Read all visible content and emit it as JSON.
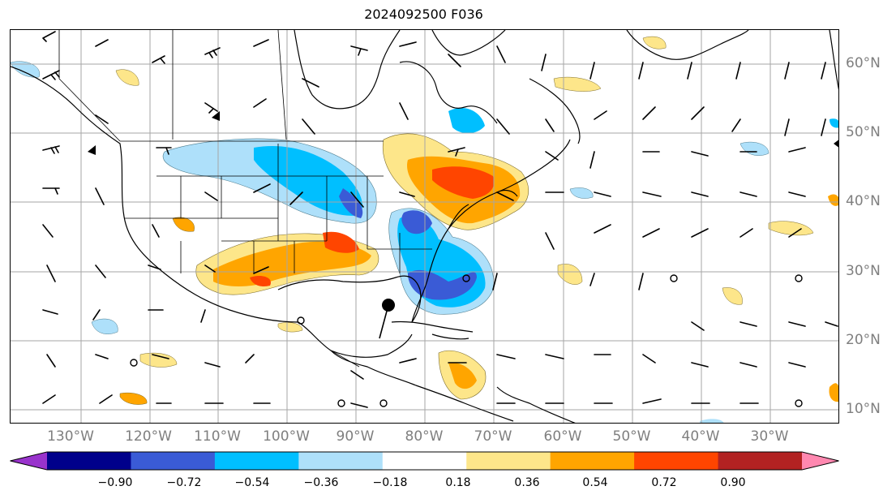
{
  "title": "2024092500 F036",
  "axes": {
    "lon_labels": [
      "130°W",
      "120°W",
      "110°W",
      "100°W",
      "90°W",
      "80°W",
      "70°W",
      "60°W",
      "50°W",
      "40°W",
      "30°W"
    ],
    "lat_labels": [
      "60°N",
      "50°N",
      "40°N",
      "30°N",
      "20°N",
      "10°N"
    ]
  },
  "colorbar": {
    "tick_labels": [
      "−0.90",
      "−0.72",
      "−0.54",
      "−0.36",
      "−0.18",
      "0.18",
      "0.36",
      "0.54",
      "0.72",
      "0.90"
    ],
    "colors": [
      "#9933cc",
      "#00008b",
      "#3a5bd6",
      "#00bfff",
      "#aee0fa",
      "#ffffff",
      "#fde68a",
      "#ffa500",
      "#ff4500",
      "#b22222",
      "#ff88b0"
    ],
    "extend": "both"
  },
  "map_features": {
    "tropical_cyclone_marker": "filled-circle",
    "wind_barbs": "black",
    "coastlines": "black",
    "gridlines": "gray"
  }
}
